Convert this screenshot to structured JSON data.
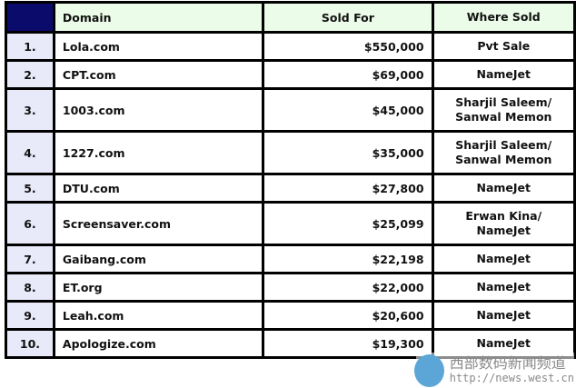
{
  "table": {
    "headers": {
      "domain": "Domain",
      "sold_for": "Sold For",
      "where_sold": "Where Sold"
    },
    "rows": [
      {
        "rank": "1.",
        "domain": "Lola.com",
        "sold_for": "$550,000",
        "where_sold": [
          "Pvt Sale"
        ]
      },
      {
        "rank": "2.",
        "domain": "CPT.com",
        "sold_for": "$69,000",
        "where_sold": [
          "NameJet"
        ]
      },
      {
        "rank": "3.",
        "domain": "1003.com",
        "sold_for": "$45,000",
        "where_sold": [
          "Sharjil Saleem/",
          "Sanwal Memon"
        ]
      },
      {
        "rank": "4.",
        "domain": "1227.com",
        "sold_for": "$35,000",
        "where_sold": [
          "Sharjil Saleem/",
          "Sanwal Memon"
        ]
      },
      {
        "rank": "5.",
        "domain": "DTU.com",
        "sold_for": "$27,800",
        "where_sold": [
          "NameJet"
        ]
      },
      {
        "rank": "6.",
        "domain": "Screensaver.com",
        "sold_for": "$25,099",
        "where_sold": [
          "Erwan Kina/",
          "NameJet"
        ]
      },
      {
        "rank": "7.",
        "domain": "Gaibang.com",
        "sold_for": "$22,198",
        "where_sold": [
          "NameJet"
        ]
      },
      {
        "rank": "8.",
        "domain": "ET.org",
        "sold_for": "$22,000",
        "where_sold": [
          "NameJet"
        ]
      },
      {
        "rank": "9.",
        "domain": "Leah.com",
        "sold_for": "$20,600",
        "where_sold": [
          "NameJet"
        ]
      },
      {
        "rank": "10.",
        "domain": "Apologize.com",
        "sold_for": "$19,300",
        "where_sold": [
          "NameJet"
        ]
      }
    ]
  },
  "watermark": {
    "title": "西部数码新闻频道",
    "url": "http://news.west.cn"
  },
  "colors": {
    "header_bg": "#ebfce8",
    "rank_header_bg": "#0b0b6b",
    "rank_bg": "#e9eaf9"
  }
}
